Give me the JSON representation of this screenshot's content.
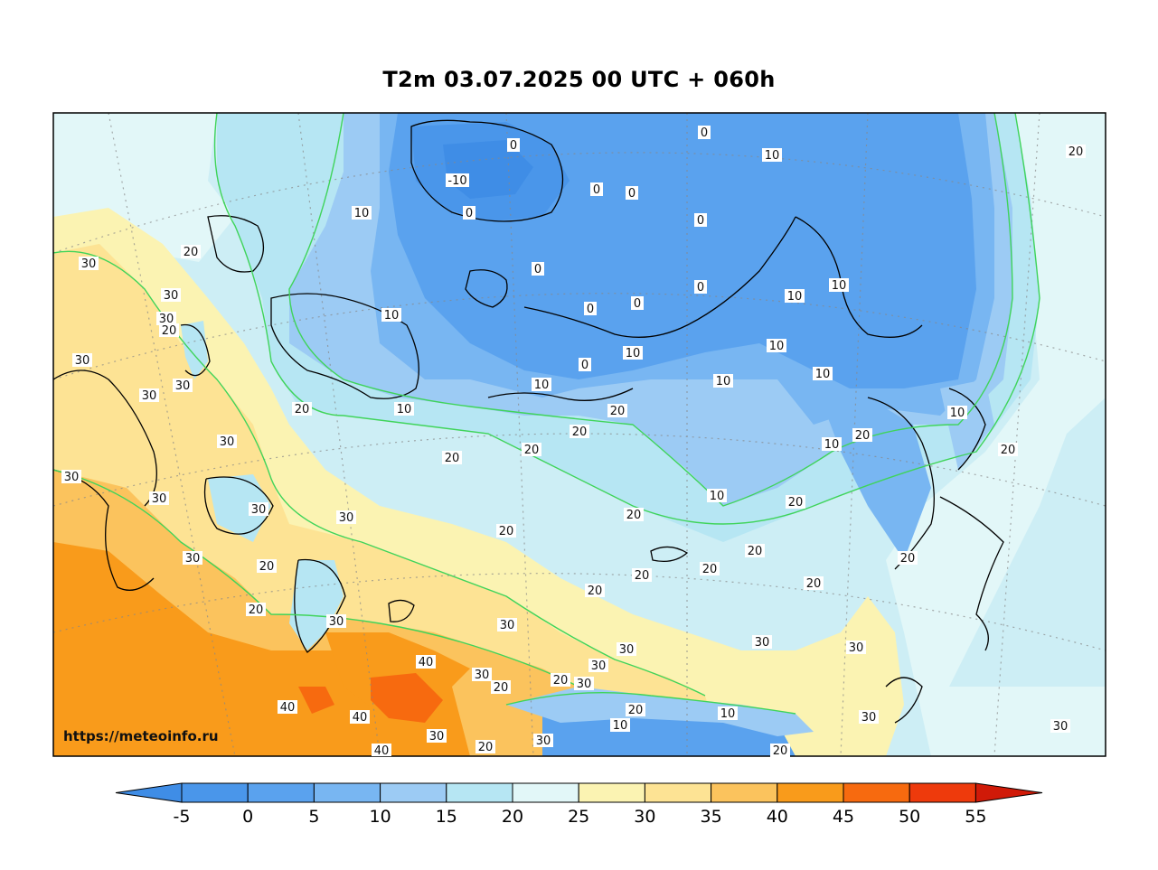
{
  "title": "T2m 03.07.2025 00 UTC + 060h",
  "watermark": "https://meteoinfo.ru",
  "colorbar": {
    "ticks": [
      "-5",
      "0",
      "5",
      "10",
      "15",
      "20",
      "25",
      "30",
      "35",
      "40",
      "45",
      "50",
      "55"
    ],
    "colors": [
      "#3f8de6",
      "#4a96ea",
      "#5aa2ee",
      "#78b6f2",
      "#9ccbf4",
      "#b6e6f3",
      "#e2f7f8",
      "#fbf3b2",
      "#fde394",
      "#fbc35d",
      "#f99b1b",
      "#f76a0f",
      "#ee3a0c",
      "#d01a08"
    ]
  },
  "contour_labels": [
    "-10",
    "0",
    "10",
    "20",
    "30",
    "40"
  ],
  "regions": {
    "arctic_ocean": "0",
    "siberia": "10",
    "central_russia": "20",
    "far_east": "20",
    "central_asia": "30",
    "caspian_lowland": "40"
  }
}
